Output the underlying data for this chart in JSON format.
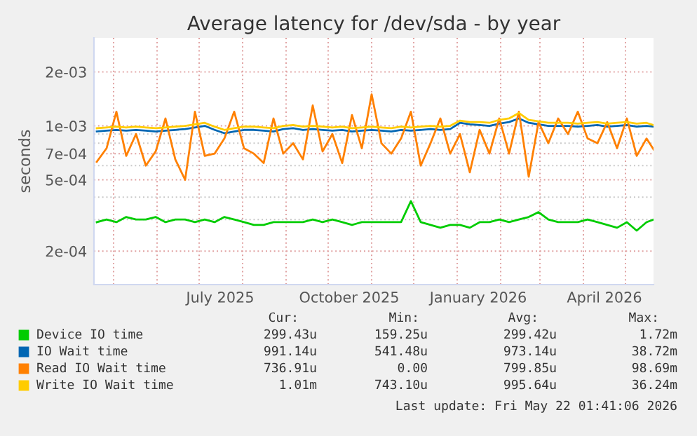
{
  "chart_data": {
    "type": "line",
    "title": "Average latency for /dev/sda - by year",
    "ylabel": "seconds",
    "log": "y",
    "grid": true,
    "legend": "bottom",
    "xlim": [
      "2025-04-17",
      "2026-05-21"
    ],
    "xticks": [
      {
        "value": "2025-05-01",
        "label": null
      },
      {
        "value": "2025-06-01",
        "label": null
      },
      {
        "value": "2025-07-01",
        "label": null
      },
      {
        "value": "2025-07-16",
        "label": "July 2025"
      },
      {
        "value": "2025-08-01",
        "label": null
      },
      {
        "value": "2025-09-01",
        "label": null
      },
      {
        "value": "2025-10-01",
        "label": null
      },
      {
        "value": "2025-10-16",
        "label": "October 2025"
      },
      {
        "value": "2025-11-01",
        "label": null
      },
      {
        "value": "2025-12-01",
        "label": null
      },
      {
        "value": "2026-01-01",
        "label": null
      },
      {
        "value": "2026-01-16",
        "label": "January 2026"
      },
      {
        "value": "2026-02-01",
        "label": null
      },
      {
        "value": "2026-03-01",
        "label": null
      },
      {
        "value": "2026-04-01",
        "label": null
      },
      {
        "value": "2026-04-16",
        "label": "April 2026"
      },
      {
        "value": "2026-05-01",
        "label": null
      }
    ],
    "ylim": [
      0.00013,
      0.0031
    ],
    "yticks": [
      {
        "value": 0.0002,
        "label": "2e-04"
      },
      {
        "value": 0.0003,
        "label": null
      },
      {
        "value": 0.0004,
        "label": null
      },
      {
        "value": 0.0005,
        "label": "5e-04"
      },
      {
        "value": 0.0006,
        "label": null
      },
      {
        "value": 0.0007,
        "label": "7e-04"
      },
      {
        "value": 0.0008,
        "label": null
      },
      {
        "value": 0.0009,
        "label": null
      },
      {
        "value": 0.001,
        "label": "1e-03"
      },
      {
        "value": 0.002,
        "label": "2e-03"
      }
    ],
    "x": [
      "2025-04-19",
      "2025-04-26",
      "2025-05-03",
      "2025-05-10",
      "2025-05-17",
      "2025-05-24",
      "2025-05-31",
      "2025-06-07",
      "2025-06-14",
      "2025-06-21",
      "2025-06-28",
      "2025-07-05",
      "2025-07-12",
      "2025-07-19",
      "2025-07-26",
      "2025-08-02",
      "2025-08-09",
      "2025-08-16",
      "2025-08-23",
      "2025-08-30",
      "2025-09-06",
      "2025-09-13",
      "2025-09-20",
      "2025-09-27",
      "2025-10-04",
      "2025-10-11",
      "2025-10-18",
      "2025-10-25",
      "2025-11-01",
      "2025-11-08",
      "2025-11-15",
      "2025-11-22",
      "2025-11-29",
      "2025-12-06",
      "2025-12-13",
      "2025-12-20",
      "2025-12-27",
      "2026-01-03",
      "2026-01-10",
      "2026-01-17",
      "2026-01-24",
      "2026-01-31",
      "2026-02-07",
      "2026-02-14",
      "2026-02-21",
      "2026-02-28",
      "2026-03-07",
      "2026-03-14",
      "2026-03-21",
      "2026-03-28",
      "2026-04-04",
      "2026-04-11",
      "2026-04-18",
      "2026-04-25",
      "2026-05-02",
      "2026-05-09",
      "2026-05-16",
      "2026-05-21"
    ],
    "series": [
      {
        "name": "Device IO time",
        "color": "#00cc00",
        "values": [
          0.00029,
          0.0003,
          0.00029,
          0.00031,
          0.0003,
          0.0003,
          0.00031,
          0.00029,
          0.0003,
          0.0003,
          0.00029,
          0.0003,
          0.00029,
          0.00031,
          0.0003,
          0.00029,
          0.00028,
          0.00028,
          0.00029,
          0.00029,
          0.00029,
          0.00029,
          0.0003,
          0.00029,
          0.0003,
          0.00029,
          0.00028,
          0.00029,
          0.00029,
          0.00029,
          0.00029,
          0.00029,
          0.00038,
          0.00029,
          0.00028,
          0.00027,
          0.00028,
          0.00028,
          0.00027,
          0.00029,
          0.00029,
          0.0003,
          0.00029,
          0.0003,
          0.00031,
          0.00033,
          0.0003,
          0.00029,
          0.00029,
          0.00029,
          0.0003,
          0.00029,
          0.00028,
          0.00027,
          0.00029,
          0.00026,
          0.00029,
          0.0003
        ]
      },
      {
        "name": "IO Wait time",
        "color": "#0066b3",
        "values": [
          0.00093,
          0.00094,
          0.00095,
          0.00094,
          0.00095,
          0.00094,
          0.00093,
          0.00094,
          0.00095,
          0.00096,
          0.00098,
          0.001,
          0.00095,
          0.00091,
          0.00093,
          0.00095,
          0.00095,
          0.00094,
          0.00093,
          0.00096,
          0.00097,
          0.00095,
          0.00096,
          0.00095,
          0.00094,
          0.00095,
          0.00093,
          0.00094,
          0.00095,
          0.00094,
          0.00093,
          0.00095,
          0.00094,
          0.00095,
          0.00096,
          0.00095,
          0.00096,
          0.00104,
          0.00102,
          0.00101,
          0.001,
          0.00103,
          0.00105,
          0.0011,
          0.00104,
          0.00102,
          0.001,
          0.001,
          0.001,
          0.00099,
          0.001,
          0.00101,
          0.00099,
          0.001,
          0.00101,
          0.00099,
          0.001,
          0.00099
        ]
      },
      {
        "name": "Read IO Wait time",
        "color": "#ff8000",
        "values": [
          0.00063,
          0.00075,
          0.0012,
          0.00068,
          0.0009,
          0.0006,
          0.00072,
          0.0011,
          0.00065,
          0.0005,
          0.0012,
          0.00068,
          0.0007,
          0.00085,
          0.0012,
          0.00075,
          0.0007,
          0.00062,
          0.0011,
          0.0007,
          0.0008,
          0.00065,
          0.0013,
          0.00072,
          0.0009,
          0.00062,
          0.00115,
          0.00075,
          0.0015,
          0.0008,
          0.0007,
          0.00085,
          0.0012,
          0.0006,
          0.0008,
          0.0011,
          0.0007,
          0.0009,
          0.00055,
          0.00095,
          0.0007,
          0.0011,
          0.0007,
          0.0012,
          0.00052,
          0.00105,
          0.0008,
          0.0011,
          0.0009,
          0.0012,
          0.00085,
          0.0008,
          0.00105,
          0.00075,
          0.0011,
          0.00068,
          0.00085,
          0.00074
        ]
      },
      {
        "name": "Write IO Wait time",
        "color": "#ffcc00",
        "values": [
          0.00097,
          0.00098,
          0.00099,
          0.00098,
          0.00099,
          0.00098,
          0.00097,
          0.00098,
          0.00099,
          0.001,
          0.00102,
          0.00104,
          0.00099,
          0.00095,
          0.00097,
          0.00099,
          0.00099,
          0.00098,
          0.00097,
          0.001,
          0.00101,
          0.00099,
          0.001,
          0.00099,
          0.00098,
          0.00099,
          0.00097,
          0.00098,
          0.00099,
          0.00098,
          0.00097,
          0.00099,
          0.00098,
          0.00099,
          0.001,
          0.00099,
          0.001,
          0.00107,
          0.00105,
          0.00105,
          0.00104,
          0.00108,
          0.0011,
          0.00118,
          0.00108,
          0.00106,
          0.00104,
          0.00104,
          0.00104,
          0.00103,
          0.00104,
          0.00105,
          0.00103,
          0.00104,
          0.00105,
          0.00103,
          0.00104,
          0.00101
        ]
      }
    ],
    "annotations": [
      "Cur:",
      "Min:",
      "Avg:",
      "Max:",
      "299.43u",
      "159.25u",
      "299.42u",
      "1.72m",
      "991.14u",
      "541.48u",
      "973.14u",
      "38.72m",
      "736.91u",
      "0.00",
      "799.85u",
      "98.69m",
      "1.01m",
      "743.10u",
      "995.64u",
      "36.24m",
      "Last update: Fri May 22 01:41:06 2026"
    ]
  }
}
